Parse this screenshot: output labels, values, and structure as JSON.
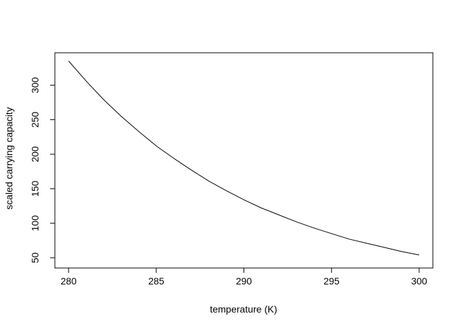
{
  "chart_data": {
    "type": "line",
    "title": "",
    "xlabel": "temperature (K)",
    "ylabel": "scaled carrying capacity",
    "xlim": [
      280,
      300
    ],
    "ylim": [
      55,
      335
    ],
    "x_ticks": [
      280,
      285,
      290,
      295,
      300
    ],
    "y_ticks": [
      50,
      100,
      150,
      200,
      250,
      300
    ],
    "grid": false,
    "series": [
      {
        "x": [
          280,
          281,
          282,
          283,
          284,
          285,
          286,
          287,
          288,
          289,
          290,
          291,
          292,
          293,
          294,
          295,
          296,
          297,
          298,
          299,
          300
        ],
        "y": [
          335,
          306,
          279,
          255,
          233,
          212,
          194,
          177,
          161,
          147,
          134,
          122,
          112,
          102,
          93,
          85,
          77,
          71,
          65,
          59,
          54
        ],
        "color": "#000000"
      }
    ]
  }
}
